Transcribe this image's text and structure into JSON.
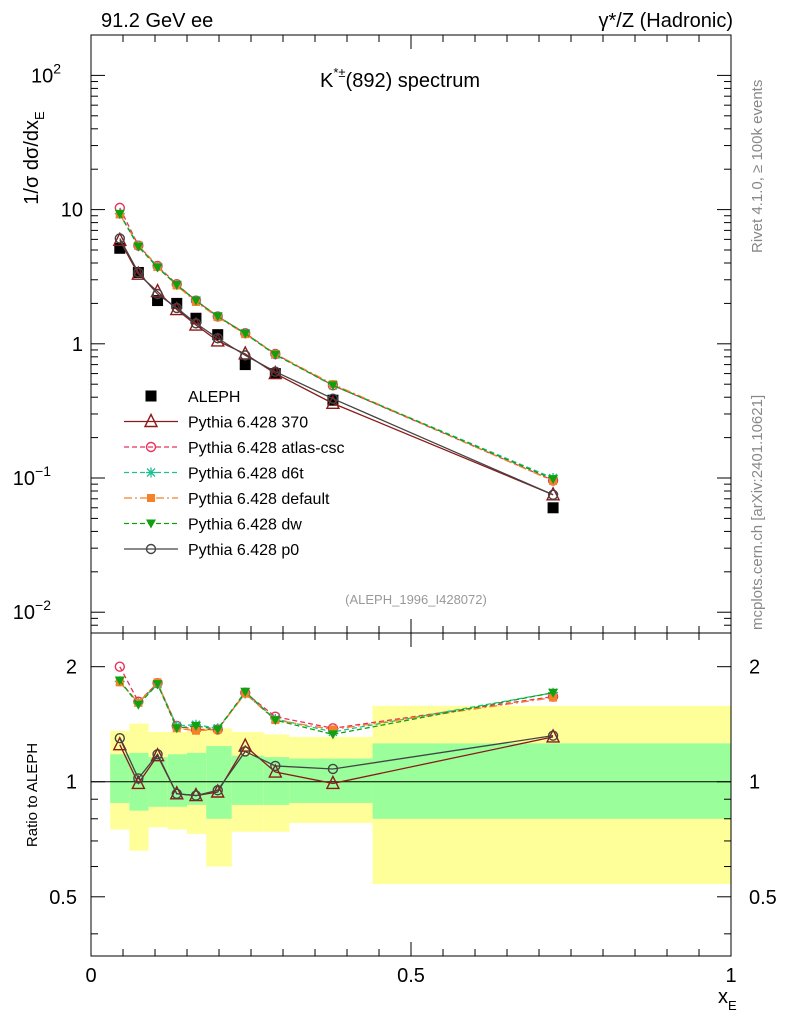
{
  "header": {
    "left": "91.2 GeV ee",
    "right": "γ*/Z (Hadronic)",
    "side_note": "Rivet 4.1.0, ≥ 100k events",
    "side_source": "mcplots.cern.ch [arXiv:2401.10621]"
  },
  "colors": {
    "ALEPH": "#000000",
    "Pythia 6.428 370": "#8b1a1a",
    "Pythia 6.428 atlas-csc": "#e8325a",
    "Pythia 6.428 d6t": "#1fbf94",
    "Pythia 6.428 default": "#f5822a",
    "Pythia 6.428 dw": "#10a010",
    "Pythia 6.428 p0": "#444444",
    "band_inner": "#9aff9a",
    "band_outer": "#ffff99"
  },
  "chart_data": {
    "type": "line",
    "title": "K*±(892) spectrum",
    "title_parts": {
      "base": "K",
      "sup": "*±",
      "rest": "(892) spectrum"
    },
    "analysis_id": "(ALEPH_1996_I428072)",
    "ylabel_main": "1/σ  dσ/dx_E",
    "ylabel_main_parts": {
      "a": "1/σ  dσ/dx",
      "sub": "E"
    },
    "ylabel_ratio": "Ratio to ALEPH",
    "xlabel": "x_E",
    "xlabel_parts": {
      "base": "x",
      "sub": "E"
    },
    "xlim": [
      0,
      1
    ],
    "ylim_main": [
      0.007,
      200
    ],
    "ylim_ratio": [
      0.35,
      2.45
    ],
    "x_ticks": [
      {
        "value": 0,
        "label": "0"
      },
      {
        "value": 0.5,
        "label": "0.5"
      },
      {
        "value": 1,
        "label": "1"
      }
    ],
    "y_ticks_main": [
      {
        "value": 100,
        "base": "10",
        "exp": "2"
      },
      {
        "value": 10,
        "base": "10",
        "exp": ""
      },
      {
        "value": 1,
        "base": "1",
        "exp": ""
      },
      {
        "value": 0.1,
        "base": "10",
        "exp": "−1"
      },
      {
        "value": 0.01,
        "base": "10",
        "exp": "−2"
      }
    ],
    "y_ticks_ratio": [
      {
        "value": 2,
        "label": "2"
      },
      {
        "value": 1,
        "label": "1"
      },
      {
        "value": 0.5,
        "label": "0.5"
      }
    ],
    "x": [
      0.045,
      0.074,
      0.104,
      0.134,
      0.164,
      0.198,
      0.241,
      0.288,
      0.378,
      0.722
    ],
    "bin_edges": [
      0.03,
      0.06,
      0.09,
      0.12,
      0.15,
      0.18,
      0.22,
      0.27,
      0.31,
      0.44,
      1.0
    ],
    "data_values": [
      5.15,
      3.4,
      2.1,
      2.0,
      1.55,
      1.17,
      0.7,
      0.6,
      0.38,
      0.06
    ],
    "band_inner": [
      [
        0.88,
        1.18
      ],
      [
        0.84,
        1.19
      ],
      [
        0.86,
        1.16
      ],
      [
        0.86,
        1.18
      ],
      [
        0.87,
        1.19
      ],
      [
        0.8,
        1.24
      ],
      [
        0.87,
        1.17
      ],
      [
        0.87,
        1.16
      ],
      [
        0.88,
        1.15
      ],
      [
        0.8,
        1.26
      ]
    ],
    "band_outer": [
      [
        0.75,
        1.36
      ],
      [
        0.66,
        1.42
      ],
      [
        0.76,
        1.35
      ],
      [
        0.75,
        1.35
      ],
      [
        0.73,
        1.38
      ],
      [
        0.6,
        1.38
      ],
      [
        0.74,
        1.35
      ],
      [
        0.74,
        1.33
      ],
      [
        0.78,
        1.31
      ],
      [
        0.54,
        1.58
      ]
    ],
    "series": [
      {
        "name": "Pythia 6.428 370",
        "marker": "triangle-open",
        "dash": "",
        "values": [
          5.9,
          3.3,
          2.45,
          1.8,
          1.38,
          1.05,
          0.84,
          0.6,
          0.36,
          0.075
        ],
        "ratio": [
          1.25,
          0.99,
          1.17,
          0.93,
          0.92,
          0.94,
          1.24,
          1.06,
          0.99,
          1.31
        ]
      },
      {
        "name": "Pythia 6.428 atlas-csc",
        "marker": "circle-open",
        "dash": "5,3",
        "values": [
          10.3,
          5.4,
          3.8,
          2.78,
          2.1,
          1.6,
          1.2,
          0.84,
          0.49,
          0.096
        ],
        "ratio": [
          2.0,
          1.62,
          1.81,
          1.4,
          1.37,
          1.37,
          1.71,
          1.48,
          1.38,
          1.67
        ]
      },
      {
        "name": "Pythia 6.428 d6t",
        "marker": "star",
        "dash": "5,3",
        "values": [
          9.3,
          5.4,
          3.75,
          2.75,
          2.1,
          1.6,
          1.2,
          0.83,
          0.49,
          0.1
        ],
        "ratio": [
          1.83,
          1.61,
          1.8,
          1.4,
          1.41,
          1.38,
          1.7,
          1.46,
          1.35,
          1.71
        ]
      },
      {
        "name": "Pythia 6.428 default",
        "marker": "square",
        "dash": "8,3,2,3",
        "values": [
          9.2,
          5.4,
          3.75,
          2.72,
          2.05,
          1.58,
          1.18,
          0.84,
          0.5,
          0.095
        ],
        "ratio": [
          1.82,
          1.61,
          1.82,
          1.38,
          1.36,
          1.37,
          1.7,
          1.45,
          1.37,
          1.66
        ]
      },
      {
        "name": "Pythia 6.428 dw",
        "marker": "triangle-down",
        "dash": "5,3",
        "values": [
          9.3,
          5.3,
          3.7,
          2.75,
          2.1,
          1.6,
          1.19,
          0.83,
          0.49,
          0.098
        ],
        "ratio": [
          1.84,
          1.59,
          1.8,
          1.38,
          1.4,
          1.37,
          1.72,
          1.45,
          1.33,
          1.71
        ]
      },
      {
        "name": "Pythia 6.428 p0",
        "marker": "circle-open",
        "dash": "",
        "values": [
          6.1,
          3.4,
          2.35,
          1.85,
          1.42,
          1.1,
          0.82,
          0.62,
          0.39,
          0.075
        ],
        "ratio": [
          1.3,
          1.02,
          1.18,
          0.93,
          0.92,
          0.95,
          1.2,
          1.1,
          1.08,
          1.32
        ]
      }
    ],
    "legend": {
      "placement": "center-left",
      "entries": [
        "ALEPH",
        "Pythia 6.428 370",
        "Pythia 6.428 atlas-csc",
        "Pythia 6.428 d6t",
        "Pythia 6.428 default",
        "Pythia 6.428 dw",
        "Pythia 6.428 p0"
      ]
    }
  }
}
